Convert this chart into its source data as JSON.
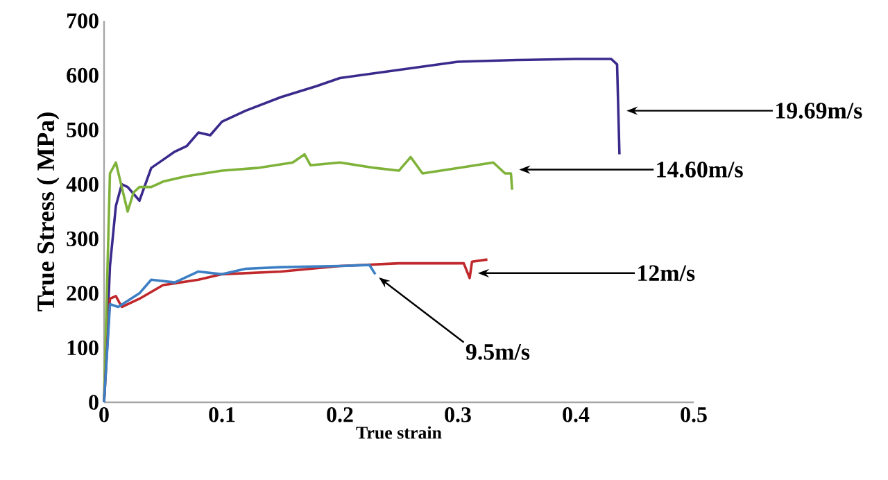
{
  "chart_data": {
    "type": "line",
    "xlabel": "True strain",
    "ylabel": "True Stress ( MPa)",
    "xlim": [
      0,
      0.5
    ],
    "ylim": [
      0,
      700
    ],
    "xticks": [
      0,
      0.1,
      0.2,
      0.3,
      0.4,
      0.5
    ],
    "yticks": [
      0,
      100,
      200,
      300,
      400,
      500,
      600,
      700
    ],
    "grid": false,
    "marker": "none",
    "line_style": "solid",
    "series": [
      {
        "name": "19.69m/s",
        "color": "#3b2a8c",
        "x": [
          0,
          0.005,
          0.01,
          0.015,
          0.02,
          0.03,
          0.04,
          0.05,
          0.06,
          0.07,
          0.08,
          0.09,
          0.1,
          0.12,
          0.15,
          0.18,
          0.2,
          0.25,
          0.3,
          0.35,
          0.4,
          0.43,
          0.435,
          0.437
        ],
        "values": [
          0,
          250,
          360,
          400,
          395,
          370,
          430,
          445,
          460,
          470,
          495,
          490,
          515,
          535,
          560,
          580,
          595,
          610,
          625,
          628,
          630,
          630,
          620,
          455
        ]
      },
      {
        "name": "14.60m/s",
        "color": "#7fb239",
        "x": [
          0,
          0.005,
          0.01,
          0.015,
          0.02,
          0.025,
          0.03,
          0.04,
          0.05,
          0.07,
          0.1,
          0.13,
          0.16,
          0.17,
          0.175,
          0.2,
          0.23,
          0.25,
          0.26,
          0.27,
          0.3,
          0.33,
          0.34,
          0.345,
          0.346
        ],
        "values": [
          0,
          420,
          440,
          395,
          350,
          385,
          395,
          395,
          405,
          415,
          425,
          430,
          440,
          455,
          435,
          440,
          430,
          425,
          450,
          420,
          430,
          440,
          420,
          420,
          390
        ]
      },
      {
        "name": "12m/s",
        "color": "#c0282b",
        "x": [
          0,
          0.005,
          0.01,
          0.015,
          0.02,
          0.03,
          0.05,
          0.08,
          0.1,
          0.15,
          0.2,
          0.25,
          0.305,
          0.31,
          0.312,
          0.325
        ],
        "values": [
          0,
          190,
          195,
          175,
          180,
          190,
          215,
          225,
          235,
          240,
          250,
          255,
          255,
          228,
          258,
          262
        ]
      },
      {
        "name": "9.5m/s",
        "color": "#3d7fc4",
        "x": [
          0,
          0.005,
          0.012,
          0.03,
          0.04,
          0.06,
          0.08,
          0.1,
          0.12,
          0.15,
          0.2,
          0.225,
          0.23
        ],
        "values": [
          0,
          180,
          175,
          200,
          225,
          220,
          240,
          235,
          245,
          248,
          250,
          252,
          235
        ]
      }
    ]
  }
}
